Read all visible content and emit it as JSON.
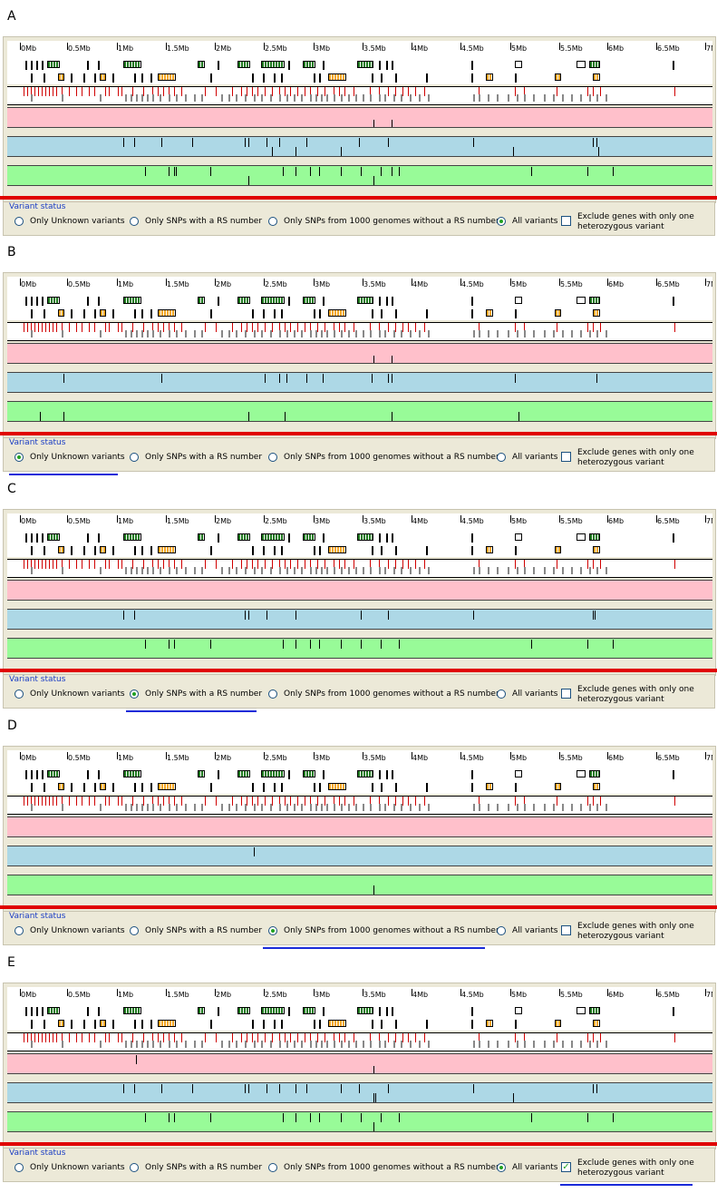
{
  "ruler_ticks": [
    "0Mb",
    "0.5Mb",
    "1Mb",
    "1.5Mb",
    "2Mb",
    "2.5Mb",
    "3Mb",
    "3.5Mb",
    "4Mb",
    "4.5Mb",
    "5Mb",
    "5.5Mb",
    "6Mb",
    "6.5Mb",
    "7Mb"
  ],
  "status": {
    "legend": "Variant status",
    "opt_unknown": "Only Unknown variants",
    "opt_rs": "Only SNPs with a RS number",
    "opt_1000g": "Only SNPs from 1000 genomes without a RS number",
    "opt_all": "All variants",
    "exclude": "Exclude genes with only one heterozygous variant"
  },
  "colors": {
    "gene_green": "#1e7a1e",
    "gene_orange": "#f5a623",
    "variant_red": "#d00000",
    "variant_gray": "#888888",
    "pink": "#FFC0CB",
    "blue": "#ADD8E6",
    "green": "#98FB98",
    "separator": "#e00000",
    "selection_underline": "#1a2bd9"
  },
  "panels": [
    {
      "letter": "A",
      "selected": "all",
      "exclude_checked": false,
      "underline": "none"
    },
    {
      "letter": "B",
      "selected": "unknown",
      "exclude_checked": false,
      "underline": "unknown"
    },
    {
      "letter": "C",
      "selected": "rs",
      "exclude_checked": false,
      "underline": "rs"
    },
    {
      "letter": "D",
      "selected": "1000g",
      "exclude_checked": false,
      "underline": "1000g"
    },
    {
      "letter": "E",
      "selected": "all",
      "exclude_checked": true,
      "underline": "exclude"
    }
  ]
}
